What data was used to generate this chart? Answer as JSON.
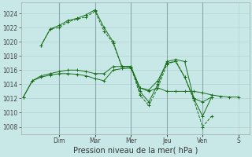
{
  "title": "Pression niveau de la mer( hPa )",
  "background_color": "#c8e8e8",
  "grid_color": "#b0cccc",
  "vline_color": "#88aaaa",
  "line_color": "#1a6e1a",
  "ylim": [
    1007,
    1025.5
  ],
  "yticks": [
    1008,
    1010,
    1012,
    1014,
    1016,
    1018,
    1020,
    1022,
    1024
  ],
  "day_labels": [
    "Dim",
    "Mar",
    "Mer",
    "Jeu",
    "Ven",
    "S"
  ],
  "day_x": [
    0.167,
    0.333,
    0.5,
    0.667,
    0.833,
    1.0
  ],
  "xlim": [
    -0.01,
    1.05
  ],
  "lines": [
    {
      "x": [
        0.0,
        0.042,
        0.083,
        0.125,
        0.167,
        0.208,
        0.25,
        0.292,
        0.333,
        0.375,
        0.417,
        0.458,
        0.5,
        0.542,
        0.583,
        0.625,
        0.667,
        0.708,
        0.75,
        0.792,
        0.833,
        0.875,
        0.917,
        0.958,
        1.0
      ],
      "y": [
        1012.2,
        1014.5,
        1015.0,
        1015.3,
        1015.5,
        1015.5,
        1015.4,
        1015.2,
        1014.8,
        1014.5,
        1016.0,
        1016.2,
        1016.3,
        1013.5,
        1013.0,
        1013.5,
        1013.0,
        1013.0,
        1013.0,
        1013.0,
        1012.8,
        1012.5,
        1012.3,
        1012.2,
        1012.2
      ],
      "style": "-",
      "marker": "+"
    },
    {
      "x": [
        0.0,
        0.042,
        0.083,
        0.125,
        0.167,
        0.208,
        0.25,
        0.292,
        0.333,
        0.375,
        0.417,
        0.458,
        0.5,
        0.542,
        0.583,
        0.625,
        0.667,
        0.708,
        0.75,
        0.792,
        0.833,
        0.875
      ],
      "y": [
        1012.2,
        1014.5,
        1015.2,
        1015.5,
        1015.8,
        1016.0,
        1016.0,
        1015.8,
        1015.5,
        1015.5,
        1016.5,
        1016.5,
        1016.5,
        1013.5,
        1013.2,
        1014.5,
        1017.0,
        1017.2,
        1015.0,
        1012.0,
        1009.5,
        1012.2
      ],
      "style": "-",
      "marker": "+"
    },
    {
      "x": [
        0.083,
        0.125,
        0.167,
        0.208,
        0.25,
        0.292,
        0.333,
        0.375,
        0.417,
        0.458,
        0.5,
        0.542,
        0.583,
        0.625,
        0.667,
        0.708,
        0.75,
        0.792,
        0.833,
        0.875
      ],
      "y": [
        1019.5,
        1021.8,
        1022.0,
        1022.8,
        1023.2,
        1023.5,
        1024.3,
        1021.5,
        1019.8,
        1016.5,
        1016.5,
        1012.5,
        1011.0,
        1013.5,
        1016.8,
        1017.3,
        1015.0,
        1011.8,
        1008.0,
        1009.5
      ],
      "style": "--",
      "marker": "+"
    },
    {
      "x": [
        0.083,
        0.125,
        0.167,
        0.208,
        0.25,
        0.292,
        0.333,
        0.375,
        0.417,
        0.458,
        0.5,
        0.542,
        0.583,
        0.625,
        0.667,
        0.708,
        0.75,
        0.792,
        0.833,
        0.875
      ],
      "y": [
        1019.5,
        1021.8,
        1022.3,
        1023.0,
        1023.3,
        1023.8,
        1024.5,
        1022.0,
        1020.0,
        1016.5,
        1016.5,
        1013.0,
        1011.5,
        1014.0,
        1017.2,
        1017.5,
        1017.2,
        1012.0,
        1011.5,
        1012.2
      ],
      "style": "-",
      "marker": "+"
    }
  ]
}
